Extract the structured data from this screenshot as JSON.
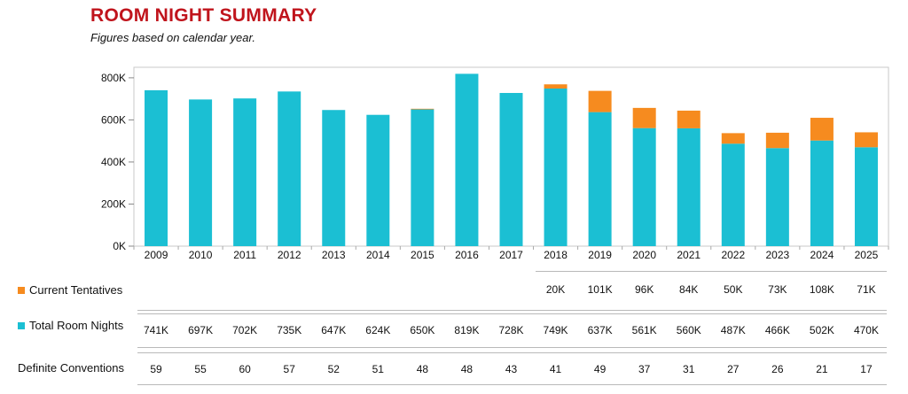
{
  "header": {
    "title": "ROOM NIGHT SUMMARY",
    "subtitle": "Figures based on calendar year."
  },
  "colors": {
    "total": "#1bbfd3",
    "tentative": "#f68b1f",
    "title": "#c0141c"
  },
  "chart_data": {
    "type": "bar",
    "stacked": true,
    "title": "",
    "xlabel": "",
    "ylabel": "",
    "ylim": [
      0,
      850000
    ],
    "yticks": [
      0,
      200000,
      400000,
      600000,
      800000
    ],
    "ytick_labels": [
      "0K",
      "200K",
      "400K",
      "600K",
      "800K"
    ],
    "grid": false,
    "categories": [
      "2009",
      "2010",
      "2011",
      "2012",
      "2013",
      "2014",
      "2015",
      "2016",
      "2017",
      "2018",
      "2019",
      "2020",
      "2021",
      "2022",
      "2023",
      "2024",
      "2025"
    ],
    "series": [
      {
        "name": "Total Room Nights",
        "color": "#1bbfd3",
        "values": [
          741000,
          697000,
          702000,
          735000,
          647000,
          624000,
          650000,
          819000,
          728000,
          749000,
          637000,
          561000,
          560000,
          487000,
          466000,
          502000,
          470000
        ]
      },
      {
        "name": "Current Tentatives",
        "color": "#f68b1f",
        "values": [
          0,
          0,
          0,
          0,
          0,
          0,
          3000,
          0,
          0,
          20000,
          101000,
          96000,
          84000,
          50000,
          73000,
          108000,
          71000
        ]
      }
    ]
  },
  "table": {
    "tentatives": {
      "label": "Current Tentatives",
      "values": [
        "",
        "",
        "",
        "",
        "",
        "",
        "",
        "",
        "",
        "20K",
        "101K",
        "96K",
        "84K",
        "50K",
        "73K",
        "108K",
        "71K"
      ]
    },
    "total": {
      "label": "Total Room Nights",
      "values": [
        "741K",
        "697K",
        "702K",
        "735K",
        "647K",
        "624K",
        "650K",
        "819K",
        "728K",
        "749K",
        "637K",
        "561K",
        "560K",
        "487K",
        "466K",
        "502K",
        "470K"
      ]
    },
    "conventions": {
      "label": "Definite Conventions",
      "values": [
        "59",
        "55",
        "60",
        "57",
        "52",
        "51",
        "48",
        "48",
        "43",
        "41",
        "49",
        "37",
        "31",
        "27",
        "26",
        "21",
        "17"
      ]
    }
  }
}
